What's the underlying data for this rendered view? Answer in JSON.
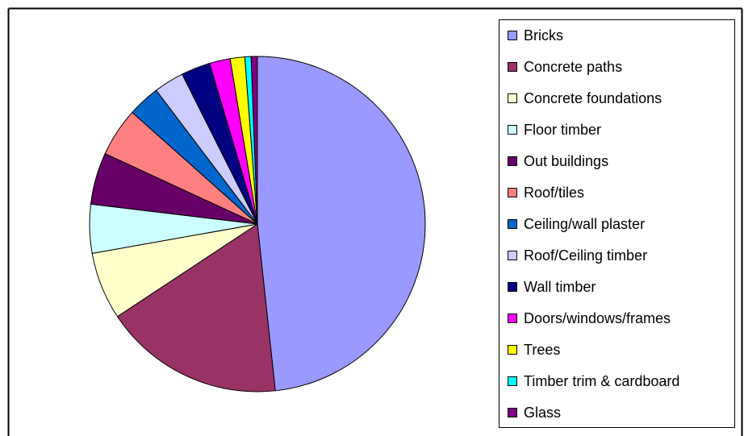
{
  "chart_data": {
    "type": "pie",
    "categories": [
      "Bricks",
      "Concrete paths",
      "Concrete foundations",
      "Floor timber",
      "Out buildings",
      "Roof/tiles",
      "Ceiling/wall plaster",
      "Roof/Ceiling timber",
      "Wall timber",
      "Doors/windows/frames",
      "Trees",
      "Timber trim & cardboard",
      "Glass"
    ],
    "values": [
      48.3,
      17.4,
      6.5,
      4.7,
      5.0,
      4.7,
      3.1,
      2.9,
      2.8,
      2.0,
      1.4,
      0.6,
      0.6
    ],
    "colors": [
      "#9999ff",
      "#993366",
      "#ffffcc",
      "#ccffff",
      "#660066",
      "#ff8080",
      "#0066cc",
      "#ccccff",
      "#000080",
      "#ff00ff",
      "#ffff00",
      "#00ffff",
      "#800080"
    ],
    "legend": "right"
  }
}
